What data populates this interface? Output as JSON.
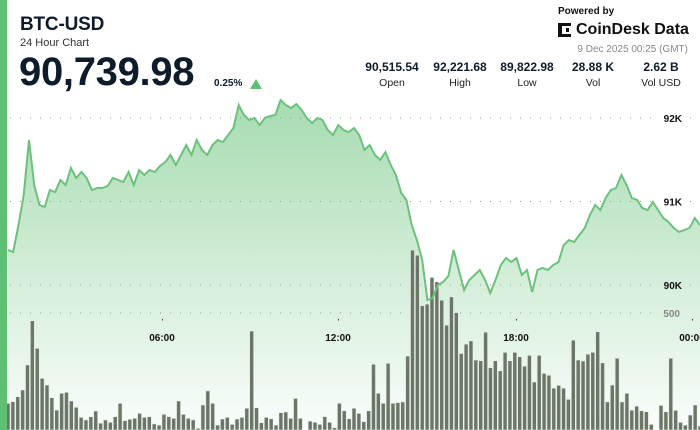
{
  "header": {
    "symbol": "BTC-USD",
    "subtitle": "24 Hour Chart",
    "price": "90,739.98",
    "change": "0.25%",
    "direction": "up"
  },
  "branding": {
    "powered_by": "Powered by",
    "logo_text": "CoinDesk Data",
    "timestamp": "9 Dec 2025 00:25 (GMT)"
  },
  "stats": [
    {
      "value": "90,515.54",
      "label": "Open"
    },
    {
      "value": "92,221.68",
      "label": "High"
    },
    {
      "value": "89,822.98",
      "label": "Low"
    },
    {
      "value": "28.88 K",
      "label": "Vol"
    },
    {
      "value": "2.62 B",
      "label": "Vol USD"
    }
  ],
  "colors": {
    "accent": "#5fbf72",
    "line": "#6cc17c",
    "volume_bar": "#6b7668"
  },
  "chart_data": {
    "type": "line",
    "title": "",
    "price_axis": {
      "ticks": [
        90000,
        91000,
        92000
      ],
      "tick_labels": [
        "90K",
        "91K",
        "92K"
      ]
    },
    "volume_axis": {
      "ticks": [
        500
      ],
      "tick_labels": [
        "500"
      ]
    },
    "time_axis": {
      "tick_labels": [
        "06:00",
        "12:00",
        "18:00",
        "00:00"
      ]
    },
    "grid": "dotted",
    "price": [
      90419,
      90395,
      90719,
      91078,
      91737,
      91198,
      90958,
      90934,
      91138,
      91114,
      91258,
      91198,
      91401,
      91281,
      91353,
      91281,
      91138,
      91162,
      91162,
      91186,
      91281,
      91258,
      91234,
      91353,
      91198,
      91377,
      91317,
      91377,
      91353,
      91425,
      91473,
      91557,
      91437,
      91557,
      91677,
      91557,
      91737,
      91617,
      91557,
      91677,
      91737,
      91713,
      91796,
      91880,
      92156,
      92036,
      91976,
      92000,
      91916,
      92000,
      92024,
      92036,
      92216,
      92156,
      92120,
      92168,
      92096,
      92000,
      91940,
      92000,
      91976,
      91856,
      91796,
      91916,
      91856,
      91832,
      91880,
      91796,
      91617,
      91677,
      91557,
      91497,
      91593,
      91437,
      91317,
      91102,
      91018,
      90719,
      90539,
      90299,
      89820,
      89844,
      90000,
      90036,
      90108,
      90419,
      90180,
      89940,
      90060,
      90120,
      90180,
      90060,
      89904,
      90060,
      90240,
      90323,
      90275,
      90323,
      90120,
      90180,
      89916,
      90180,
      90204,
      90180,
      90240,
      90275,
      90479,
      90539,
      90515,
      90599,
      90683,
      90838,
      90958,
      90898,
      91042,
      91138,
      91162,
      91317,
      91198,
      91042,
      91018,
      90922,
      90898,
      90994,
      90898,
      90802,
      90754,
      90683,
      90635,
      90659,
      90683,
      90802,
      90719
    ],
    "volume": [
      114,
      121,
      142,
      171,
      278,
      467,
      349,
      221,
      192,
      138,
      85,
      157,
      161,
      124,
      97,
      54,
      43,
      57,
      81,
      29,
      43,
      33,
      57,
      114,
      40,
      46,
      50,
      71,
      54,
      57,
      26,
      21,
      67,
      57,
      50,
      124,
      67,
      50,
      43,
      7,
      107,
      167,
      114,
      21,
      47,
      54,
      24,
      47,
      54,
      93,
      423,
      95,
      31,
      54,
      48,
      21,
      74,
      77,
      50,
      135,
      50,
      0,
      38,
      33,
      24,
      57,
      33,
      10,
      114,
      82,
      48,
      93,
      71,
      36,
      82,
      281,
      157,
      114,
      285,
      114,
      117,
      120,
      316,
      769,
      747,
      531,
      538,
      652,
      633,
      555,
      448,
      569,
      502,
      327,
      367,
      381,
      299,
      296,
      418,
      266,
      296,
      253,
      332,
      296,
      332,
      313,
      273,
      319,
      205,
      319,
      242,
      234,
      179,
      191,
      179,
      131,
      384,
      299,
      295,
      324,
      332,
      420,
      287,
      120,
      192,
      307,
      120,
      157,
      85,
      102,
      82,
      78,
      24,
      0,
      105,
      78,
      307,
      84,
      33,
      21,
      64,
      107,
      17
    ]
  }
}
